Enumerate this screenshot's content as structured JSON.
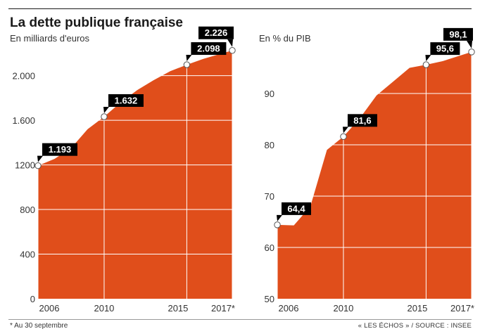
{
  "header": {
    "title": "La dette publique française"
  },
  "footer": {
    "footnote": "* Au 30 septembre",
    "source": "« LES ÉCHOS » / SOURCE : INSEE"
  },
  "colors": {
    "area": "#e04e1b",
    "label_bg": "#000000",
    "grid": "#ffffff"
  },
  "chart_data": [
    {
      "type": "area",
      "subtitle": "En milliards d'euros",
      "x": [
        2006,
        2007,
        2008,
        2009,
        2010,
        2011,
        2012,
        2013,
        2014,
        2015,
        2016,
        2017.75
      ],
      "values": [
        1193,
        1254,
        1350,
        1520,
        1632,
        1760,
        1870,
        1960,
        2040,
        2098,
        2150,
        2226
      ],
      "ylim": [
        0,
        2300
      ],
      "yticks": [
        0,
        400,
        800,
        1200,
        1600,
        2000
      ],
      "ytick_labels": [
        "0",
        "400",
        "800",
        "1200",
        "1.600",
        "2.000"
      ],
      "xticks": [
        2006,
        2010,
        2015,
        2017.75
      ],
      "xtick_labels": [
        "2006",
        "2010",
        "2015",
        "2017*"
      ],
      "annotations": [
        {
          "x": 2006,
          "y": 1193,
          "label": "1.193"
        },
        {
          "x": 2010,
          "y": 1632,
          "label": "1.632"
        },
        {
          "x": 2015,
          "y": 2098,
          "label": "2.098"
        },
        {
          "x": 2017.75,
          "y": 2226,
          "label": "2.226"
        }
      ],
      "grid": true
    },
    {
      "type": "area",
      "subtitle": "En % du PIB",
      "x": [
        2006,
        2007,
        2008,
        2009,
        2010,
        2011,
        2012,
        2013,
        2014,
        2015,
        2016,
        2017.75
      ],
      "values": [
        64.4,
        64.3,
        68.0,
        79.0,
        81.6,
        85.2,
        89.6,
        92.3,
        95.0,
        95.6,
        96.3,
        98.1
      ],
      "ylim": [
        50,
        100
      ],
      "yticks": [
        50,
        60,
        70,
        80,
        90
      ],
      "ytick_labels": [
        "50",
        "60",
        "70",
        "80",
        "90"
      ],
      "xticks": [
        2006,
        2010,
        2015,
        2017.75
      ],
      "xtick_labels": [
        "2006",
        "2010",
        "2015",
        "2017*"
      ],
      "annotations": [
        {
          "x": 2006,
          "y": 64.4,
          "label": "64,4"
        },
        {
          "x": 2010,
          "y": 81.6,
          "label": "81,6"
        },
        {
          "x": 2015,
          "y": 95.6,
          "label": "95,6"
        },
        {
          "x": 2017.75,
          "y": 98.1,
          "label": "98,1"
        }
      ],
      "grid": true
    }
  ]
}
